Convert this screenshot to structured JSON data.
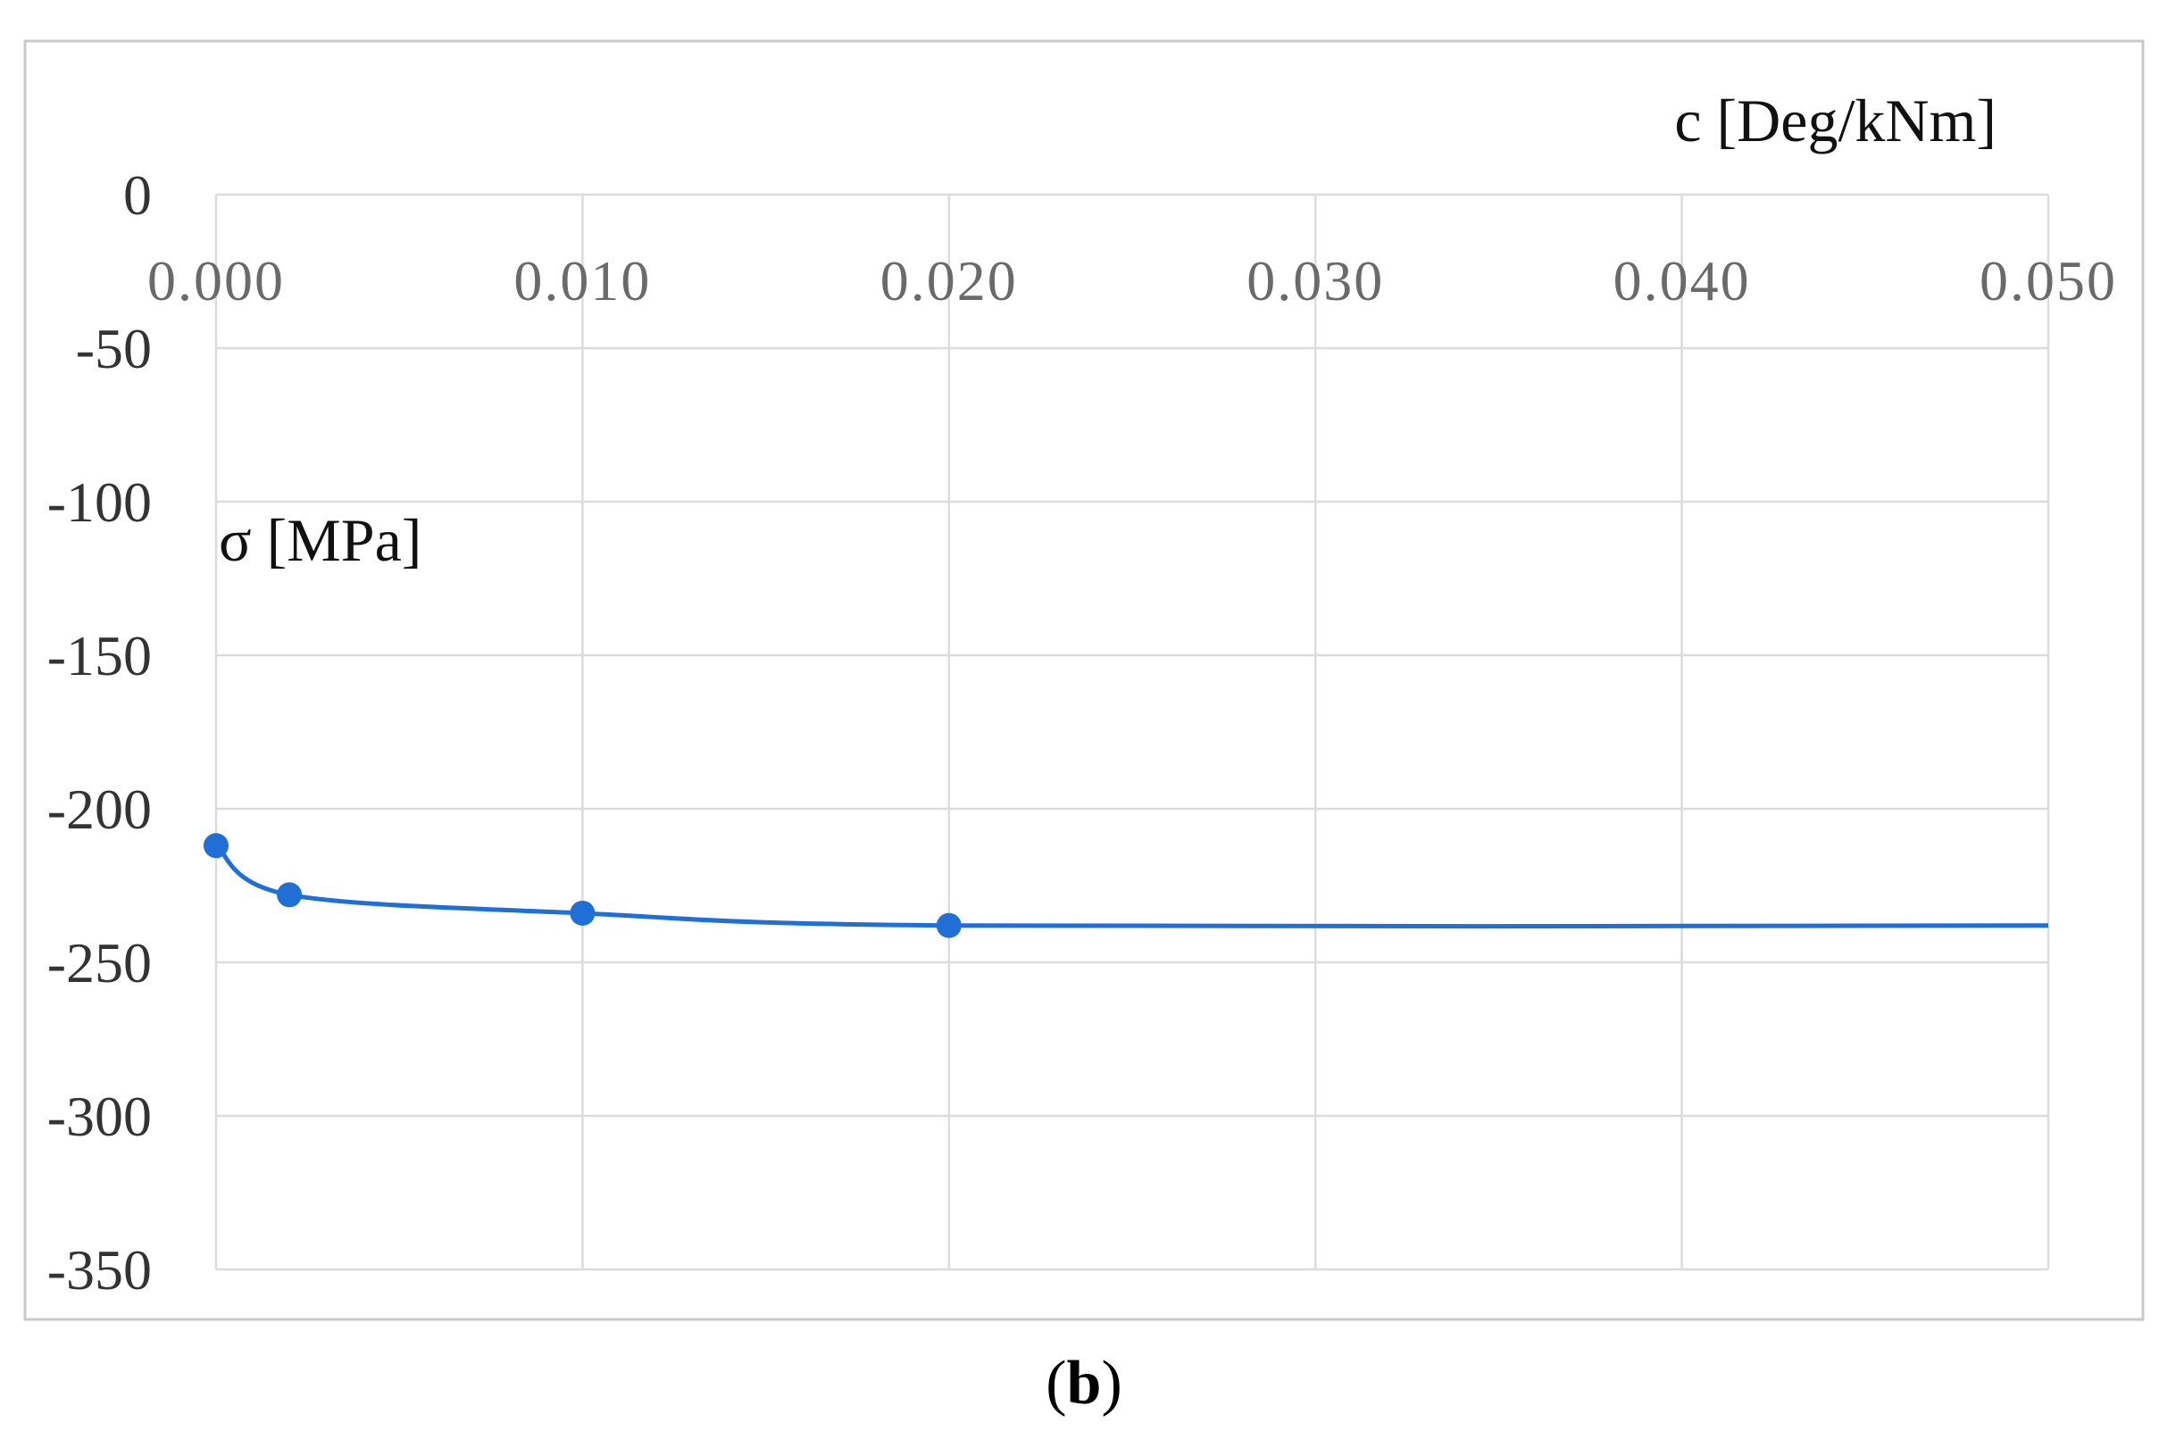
{
  "chart_data": {
    "type": "line",
    "xlabel": "c [Deg/kNm]",
    "ylabel": "σ [MPa]",
    "panel_label": {
      "open": "(",
      "letter": "b",
      "close": ")"
    },
    "xlim": [
      0,
      0.05
    ],
    "ylim": [
      -350,
      0
    ],
    "x_ticks": [
      0,
      0.01,
      0.02,
      0.03,
      0.04,
      0.05
    ],
    "x_tick_labels": [
      "0.000",
      "0.010",
      "0.020",
      "0.030",
      "0.040",
      "0.050"
    ],
    "y_ticks": [
      0,
      -50,
      -100,
      -150,
      -200,
      -250,
      -300,
      -350
    ],
    "y_tick_labels": [
      "0",
      "-50",
      "-100",
      "-150",
      "-200",
      "-250",
      "-300",
      "-350"
    ],
    "x_axis_position": "top",
    "grid": true,
    "legend": false,
    "series": [
      {
        "color": "#1f6fd6",
        "points": [
          {
            "x": 0.0,
            "y": -212
          },
          {
            "x": 0.002,
            "y": -228
          },
          {
            "x": 0.01,
            "y": -234
          },
          {
            "x": 0.02,
            "y": -238
          }
        ],
        "line_to_x": 0.05,
        "line_end_y": -238
      }
    ]
  }
}
